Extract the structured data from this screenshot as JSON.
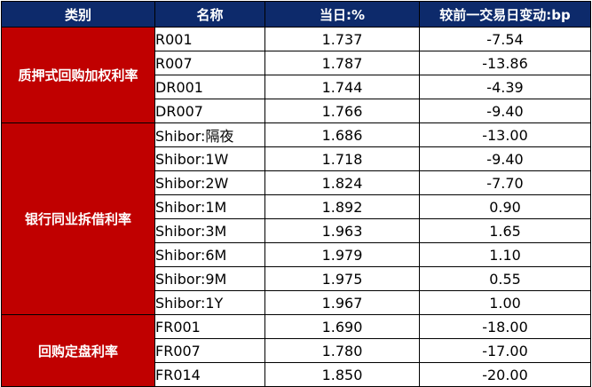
{
  "headers": {
    "category": "类别",
    "name": "名称",
    "today": "当日:%",
    "change": "较前一交易日变动:bp"
  },
  "colors": {
    "header_bg": "#0d2a6b",
    "category_bg": "#c00000"
  },
  "groups": [
    {
      "category": "质押式回购加权利率",
      "rows": [
        {
          "name": "R001",
          "today": "1.737",
          "change": "-7.54"
        },
        {
          "name": "R007",
          "today": "1.787",
          "change": "-13.86"
        },
        {
          "name": "DR001",
          "today": "1.744",
          "change": "-4.39"
        },
        {
          "name": "DR007",
          "today": "1.766",
          "change": "-9.40"
        }
      ]
    },
    {
      "category": "银行同业拆借利率",
      "rows": [
        {
          "name": "Shibor:隔夜",
          "today": "1.686",
          "change": "-13.00"
        },
        {
          "name": "Shibor:1W",
          "today": "1.718",
          "change": "-9.40"
        },
        {
          "name": "Shibor:2W",
          "today": "1.824",
          "change": "-7.70"
        },
        {
          "name": "Shibor:1M",
          "today": "1.892",
          "change": "0.90"
        },
        {
          "name": "Shibor:3M",
          "today": "1.963",
          "change": "1.65"
        },
        {
          "name": "Shibor:6M",
          "today": "1.979",
          "change": "1.10"
        },
        {
          "name": "Shibor:9M",
          "today": "1.975",
          "change": "0.55"
        },
        {
          "name": "Shibor:1Y",
          "today": "1.967",
          "change": "1.00"
        }
      ]
    },
    {
      "category": "回购定盘利率",
      "rows": [
        {
          "name": "FR001",
          "today": "1.690",
          "change": "-18.00"
        },
        {
          "name": "FR007",
          "today": "1.780",
          "change": "-17.00"
        },
        {
          "name": "FR014",
          "today": "1.850",
          "change": "-20.00"
        }
      ]
    }
  ]
}
